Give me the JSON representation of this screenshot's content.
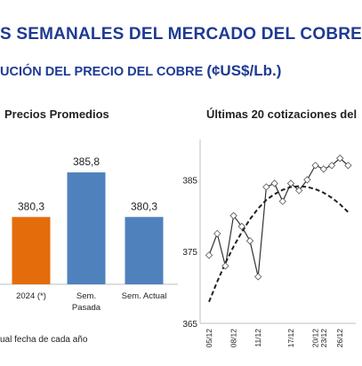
{
  "header": {
    "title": "S SEMANALES DEL MERCADO DEL COBRE",
    "subtitle_part1": "UCIÓN DEL PRECIO DEL COBRE",
    "subtitle_part2": "(¢US$/Lb.)"
  },
  "footnote": "ual fecha de cada año",
  "chart_data": [
    {
      "type": "bar",
      "title": "Precios Promedios",
      "categories": [
        "",
        "2024 (*)",
        "Sem. Pasada",
        "Sem. Actual"
      ],
      "category_lines": [
        [
          ""
        ],
        [
          "2024 (*)"
        ],
        [
          "Sem.",
          "Pasada"
        ],
        [
          "Sem. Actual"
        ]
      ],
      "values": [
        null,
        380.3,
        385.8,
        380.3
      ],
      "value_labels": [
        "",
        "380,3",
        "385,8",
        "380,3"
      ],
      "colors": [
        "#4f81bd",
        "#e46c0a",
        "#4f81bd",
        "#4f81bd"
      ],
      "ylim": [
        372,
        388
      ]
    },
    {
      "type": "line",
      "title": "Últimas 20 cotizaciones del",
      "x": [
        "05/12",
        "06/12",
        "07/12",
        "08/12",
        "09/12",
        "10/12",
        "11/12",
        "12/12",
        "13/12",
        "16/12",
        "17/12",
        "18/12",
        "19/12",
        "20/12",
        "23/12",
        "24/12",
        "26/12",
        "27/12"
      ],
      "x_tick_labels": [
        "05/12",
        "08/12",
        "11/12",
        "17/12",
        "20/12",
        "23/12",
        "26/12"
      ],
      "series": [
        {
          "values": [
            374.5,
            377.5,
            373.0,
            380.0,
            378.5,
            376.5,
            371.5,
            384.0,
            384.5,
            382.0,
            384.5,
            383.5,
            385.0,
            387.0,
            386.5,
            387.0,
            388.0,
            387.0
          ],
          "color": "#333333"
        }
      ],
      "trend": {
        "style": "dashed",
        "color": "#222222",
        "values": [
          368.0,
          370.8,
          373.4,
          375.7,
          377.7,
          379.5,
          381.0,
          382.2,
          383.0,
          383.6,
          384.0,
          384.1,
          384.0,
          383.7,
          383.2,
          382.5,
          381.6,
          380.5
        ]
      },
      "yticks": [
        365,
        375,
        385
      ],
      "ylim": [
        365,
        390
      ]
    }
  ]
}
